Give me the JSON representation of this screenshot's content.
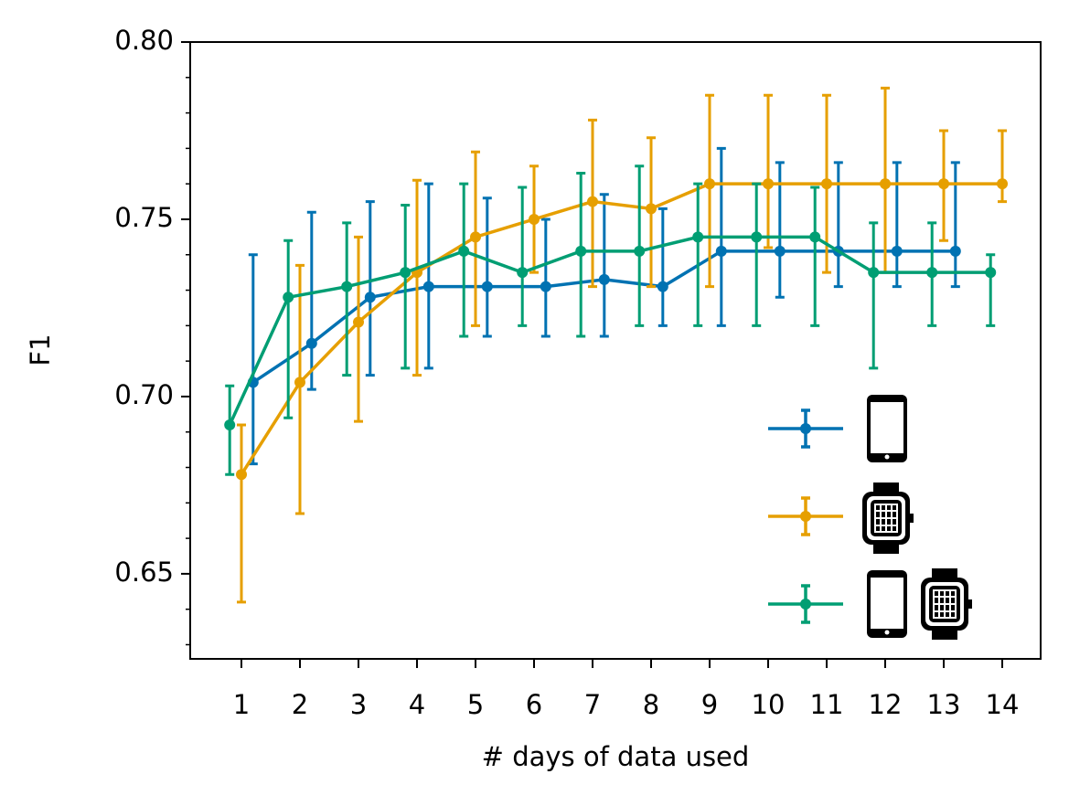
{
  "chart_data": {
    "type": "line",
    "xlabel": "# days of data used",
    "ylabel": "F1",
    "xlim": [
      0.125,
      14.656
    ],
    "xticks": [
      1,
      2,
      3,
      4,
      5,
      6,
      7,
      8,
      9,
      10,
      11,
      12,
      13,
      14
    ],
    "ylim": [
      0.626,
      0.8
    ],
    "yticks": [
      0.65,
      {
        "value": 0.7,
        "label": "0.70"
      },
      0.75,
      {
        "value": 0.8,
        "label": "0.80"
      }
    ],
    "yminorticks": [
      0.63,
      0.64,
      0.66,
      0.67,
      0.68,
      0.69,
      0.71,
      0.72,
      0.73,
      0.74,
      0.76,
      0.77,
      0.78,
      0.79
    ],
    "series": [
      {
        "color": "#0072b2",
        "x": [
          1.2,
          2.2,
          3.2,
          4.2,
          5.2,
          6.2,
          7.2,
          8.2,
          9.2,
          10.2,
          11.2,
          12.2,
          13.2
        ],
        "values": [
          0.704,
          0.715,
          0.728,
          0.731,
          0.731,
          0.731,
          0.733,
          0.731,
          0.741,
          0.741,
          0.741,
          0.741,
          0.741
        ],
        "upper": [
          0.74,
          0.752,
          0.755,
          0.76,
          0.756,
          0.75,
          0.757,
          0.753,
          0.77,
          0.766,
          0.766,
          0.766,
          0.766
        ],
        "lower": [
          0.681,
          0.702,
          0.706,
          0.708,
          0.717,
          0.717,
          0.717,
          0.72,
          0.72,
          0.728,
          0.731,
          0.731,
          0.731
        ]
      },
      {
        "color": "#e69f00",
        "x": [
          1,
          2,
          3,
          4,
          5,
          6,
          7,
          8,
          9,
          10,
          11,
          12,
          13,
          14
        ],
        "values": [
          0.678,
          0.704,
          0.721,
          0.735,
          0.745,
          0.75,
          0.755,
          0.753,
          0.76,
          0.76,
          0.76,
          0.76,
          0.76,
          0.76
        ],
        "upper": [
          0.692,
          0.737,
          0.745,
          0.761,
          0.769,
          0.765,
          0.778,
          0.773,
          0.785,
          0.785,
          0.785,
          0.787,
          0.775,
          0.775
        ],
        "lower": [
          0.642,
          0.667,
          0.693,
          0.706,
          0.72,
          0.735,
          0.731,
          0.731,
          0.731,
          0.742,
          0.735,
          0.735,
          0.744,
          0.755
        ]
      },
      {
        "color": "#009e73",
        "x": [
          0.8,
          1.8,
          2.8,
          3.8,
          4.8,
          5.8,
          6.8,
          7.8,
          8.8,
          9.8,
          10.8,
          11.8,
          12.8,
          13.8
        ],
        "values": [
          0.692,
          0.728,
          0.731,
          0.735,
          0.741,
          0.735,
          0.741,
          0.741,
          0.745,
          0.745,
          0.745,
          0.735,
          0.735,
          0.735
        ],
        "upper": [
          0.703,
          0.744,
          0.749,
          0.754,
          0.76,
          0.759,
          0.763,
          0.765,
          0.76,
          0.76,
          0.759,
          0.749,
          0.749,
          0.74
        ],
        "lower": [
          0.678,
          0.694,
          0.706,
          0.708,
          0.717,
          0.72,
          0.717,
          0.72,
          0.72,
          0.72,
          0.72,
          0.708,
          0.72,
          0.72
        ]
      }
    ]
  }
}
